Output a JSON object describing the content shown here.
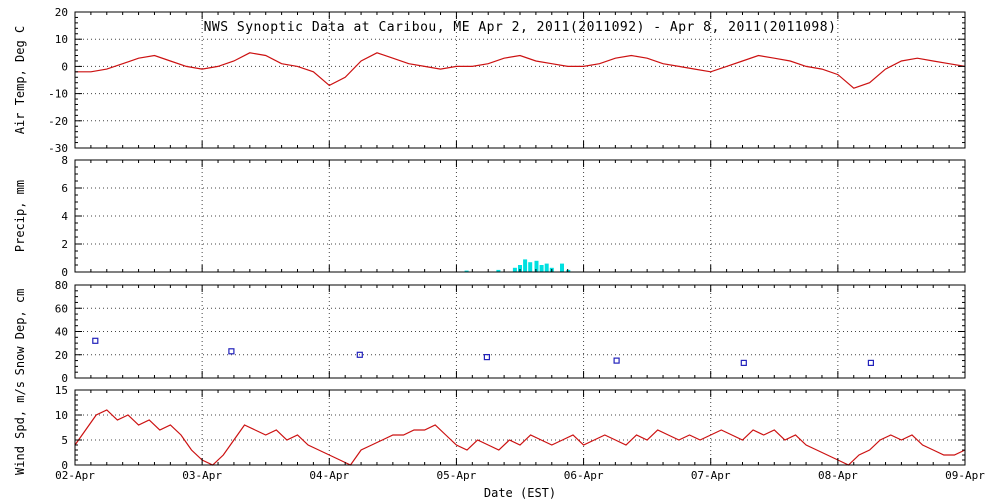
{
  "page": {
    "title": "NWS Synoptic Data at Caribou, ME  Apr 2, 2011(2011092) - Apr 8, 2011(2011098)",
    "xlabel": "Date (EST)"
  },
  "colors": {
    "line": "#cc1111",
    "precip": "#00e0e0",
    "snow": "#2222bb",
    "axis": "#000000"
  },
  "x_axis": {
    "label": "Date (EST)",
    "range_days": 7,
    "tick_labels": [
      "02-Apr",
      "03-Apr",
      "04-Apr",
      "05-Apr",
      "06-Apr",
      "07-Apr",
      "08-Apr",
      "09-Apr"
    ]
  },
  "chart_data": [
    {
      "type": "line",
      "series": "air-temperature",
      "ylabel": "Air Temp, Deg C",
      "ylim": [
        -30,
        20
      ],
      "yticks": [
        20,
        10,
        0,
        -10,
        -20,
        -30
      ],
      "yminor": 2,
      "interval_hours": 3,
      "values": [
        -2,
        -2,
        -1,
        1,
        3,
        4,
        2,
        0,
        -1,
        0,
        2,
        5,
        4,
        1,
        0,
        -2,
        -7,
        -4,
        2,
        5,
        3,
        1,
        0,
        -1,
        0,
        0,
        1,
        3,
        4,
        2,
        1,
        0,
        0,
        1,
        3,
        4,
        3,
        1,
        0,
        -1,
        -2,
        0,
        2,
        4,
        3,
        2,
        0,
        -1,
        -3,
        -8,
        -6,
        -1,
        2,
        3,
        2,
        1,
        0
      ]
    },
    {
      "type": "bar",
      "series": "precipitation",
      "ylabel": "Precip, mm",
      "ylim": [
        0,
        8
      ],
      "yticks": [
        8,
        6,
        4,
        2,
        0
      ],
      "yminor": 0.5,
      "points": [
        [
          3.08,
          0.1
        ],
        [
          3.33,
          0.15
        ],
        [
          3.46,
          0.3
        ],
        [
          3.5,
          0.5
        ],
        [
          3.54,
          0.9
        ],
        [
          3.58,
          0.7
        ],
        [
          3.63,
          0.8
        ],
        [
          3.67,
          0.5
        ],
        [
          3.71,
          0.6
        ],
        [
          3.75,
          0.3
        ],
        [
          3.83,
          0.6
        ],
        [
          3.88,
          0.15
        ]
      ]
    },
    {
      "type": "scatter",
      "series": "snow-depth",
      "ylabel": "Snow Dep, cm",
      "ylim": [
        0,
        80
      ],
      "yticks": [
        80,
        60,
        40,
        20,
        0
      ],
      "yminor": 5,
      "points": [
        [
          0.16,
          32
        ],
        [
          1.23,
          23
        ],
        [
          2.24,
          20
        ],
        [
          3.24,
          18
        ],
        [
          4.26,
          15
        ],
        [
          5.26,
          13
        ],
        [
          6.26,
          13
        ]
      ]
    },
    {
      "type": "line",
      "series": "wind-speed",
      "ylabel": "Wind Spd, m/s",
      "ylim": [
        0,
        15
      ],
      "yticks": [
        15,
        10,
        5,
        0
      ],
      "yminor": 1,
      "interval_hours": 2,
      "values": [
        4,
        7,
        10,
        11,
        9,
        10,
        8,
        9,
        7,
        8,
        6,
        3,
        1,
        0,
        2,
        5,
        8,
        7,
        6,
        7,
        5,
        6,
        4,
        3,
        2,
        1,
        0,
        3,
        4,
        5,
        6,
        6,
        7,
        7,
        8,
        6,
        4,
        3,
        5,
        4,
        3,
        5,
        4,
        6,
        5,
        4,
        5,
        6,
        4,
        5,
        6,
        5,
        4,
        6,
        5,
        7,
        6,
        5,
        6,
        5,
        6,
        7,
        6,
        5,
        7,
        6,
        7,
        5,
        6,
        4,
        3,
        2,
        1,
        0,
        2,
        3,
        5,
        6,
        5,
        6,
        4,
        3,
        2,
        2,
        3
      ]
    }
  ]
}
